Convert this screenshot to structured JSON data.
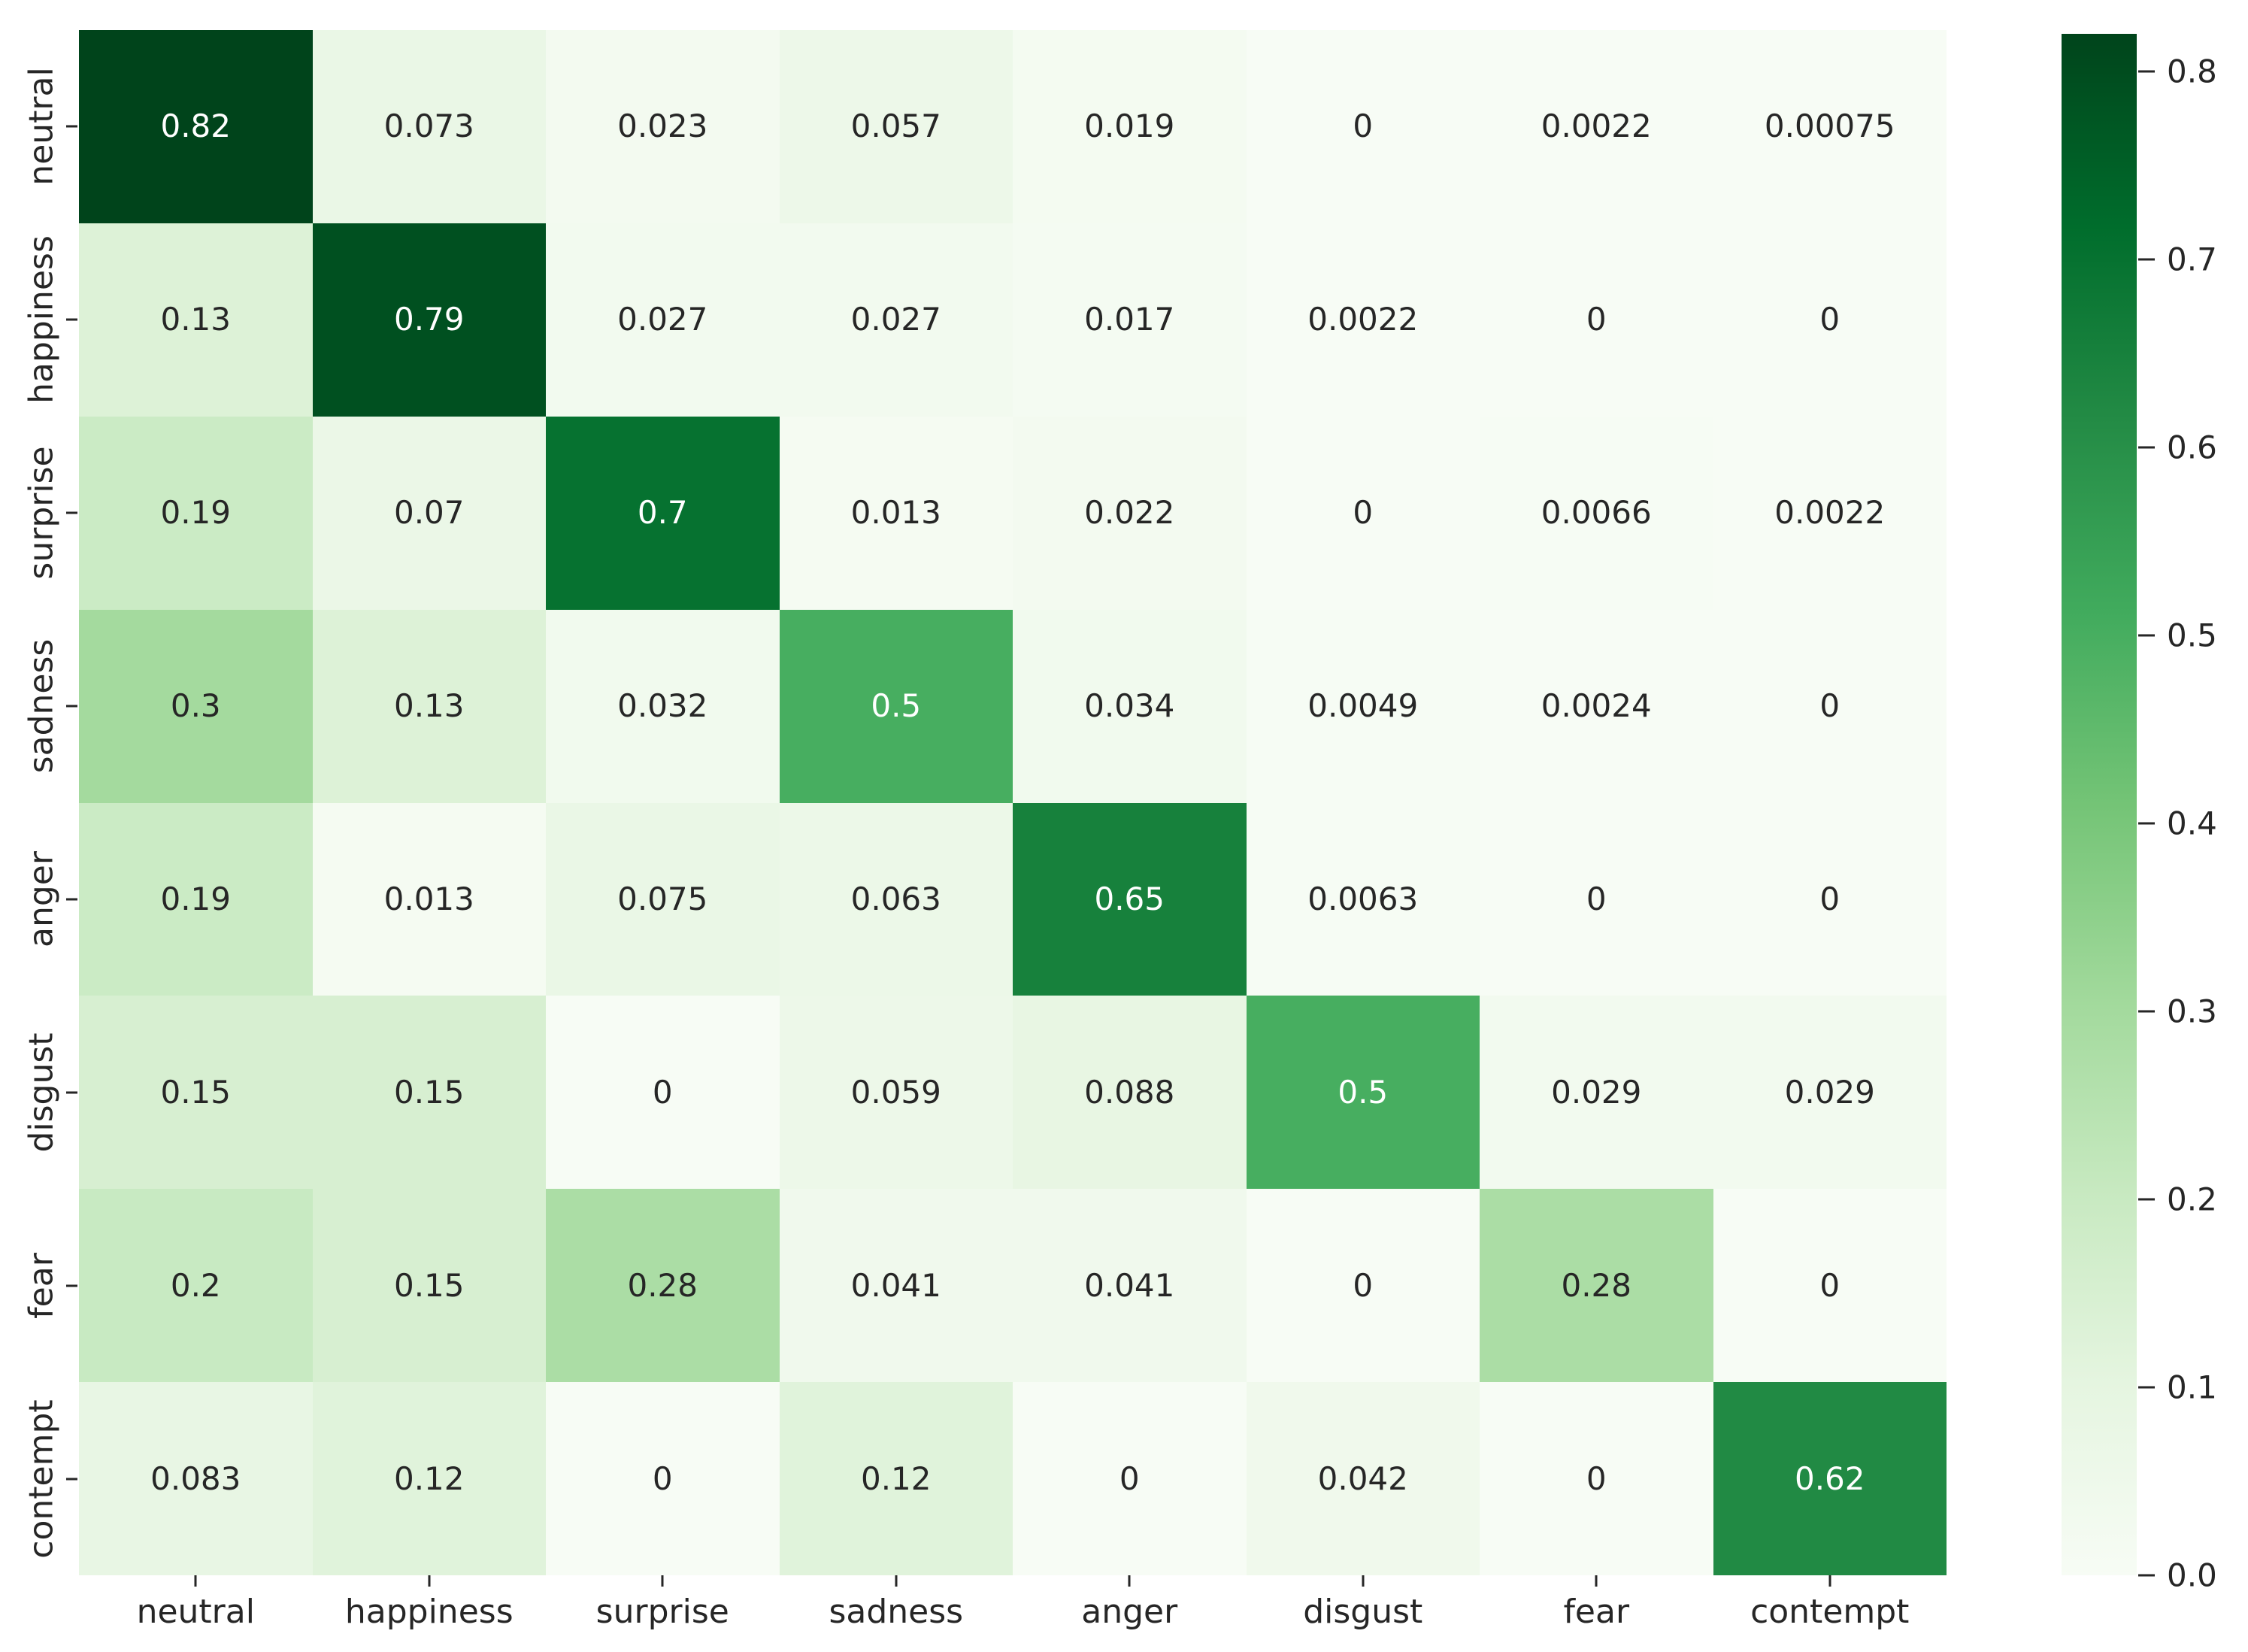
{
  "chart_data": {
    "type": "heatmap",
    "title": "",
    "xlabel": "",
    "ylabel": "",
    "row_labels": [
      "neutral",
      "happiness",
      "surprise",
      "sadness",
      "anger",
      "disgust",
      "fear",
      "contempt"
    ],
    "col_labels": [
      "neutral",
      "happiness",
      "surprise",
      "sadness",
      "anger",
      "disgust",
      "fear",
      "contempt"
    ],
    "values": [
      [
        "0.82",
        "0.073",
        "0.023",
        "0.057",
        "0.019",
        "0",
        "0.0022",
        "0.00075"
      ],
      [
        "0.13",
        "0.79",
        "0.027",
        "0.027",
        "0.017",
        "0.0022",
        "0",
        "0"
      ],
      [
        "0.19",
        "0.07",
        "0.7",
        "0.013",
        "0.022",
        "0",
        "0.0066",
        "0.0022"
      ],
      [
        "0.3",
        "0.13",
        "0.032",
        "0.5",
        "0.034",
        "0.0049",
        "0.0024",
        "0"
      ],
      [
        "0.19",
        "0.013",
        "0.075",
        "0.063",
        "0.65",
        "0.0063",
        "0",
        "0"
      ],
      [
        "0.15",
        "0.15",
        "0",
        "0.059",
        "0.088",
        "0.5",
        "0.029",
        "0.029"
      ],
      [
        "0.2",
        "0.15",
        "0.28",
        "0.041",
        "0.041",
        "0",
        "0.28",
        "0"
      ],
      [
        "0.083",
        "0.12",
        "0",
        "0.12",
        "0",
        "0.042",
        "0",
        "0.62"
      ]
    ],
    "vmin": 0,
    "vmax": 0.82,
    "colormap": "Greens",
    "colorbar_ticks": [
      "0.8",
      "0.7",
      "0.6",
      "0.5",
      "0.4",
      "0.3",
      "0.2",
      "0.1",
      "0.0"
    ],
    "legend_position": "right",
    "grid": false,
    "colors": {
      "cmap_anchors": [
        "#f7fcf5",
        "#e5f5e0",
        "#c7e9c0",
        "#a1d99b",
        "#74c476",
        "#41ab5d",
        "#238b45",
        "#006d2c",
        "#00441b"
      ],
      "annotation_dark": "#262626",
      "annotation_light": "#ffffff",
      "background": "#ffffff"
    }
  }
}
